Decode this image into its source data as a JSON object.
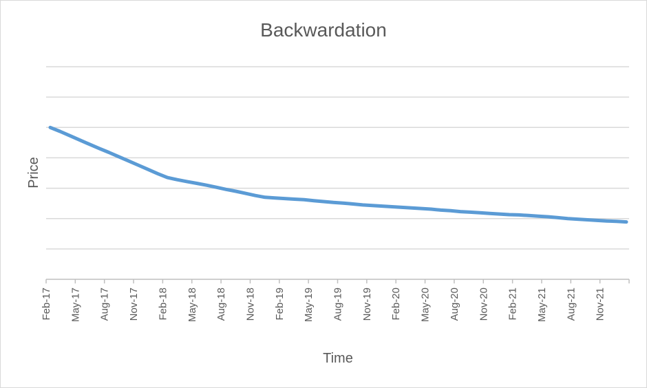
{
  "chart_data": {
    "type": "line",
    "title": "Backwardation",
    "xlabel": "Time",
    "ylabel": "Price",
    "categories": [
      "Feb-17",
      "Mar-17",
      "Apr-17",
      "May-17",
      "Jun-17",
      "Jul-17",
      "Aug-17",
      "Sep-17",
      "Oct-17",
      "Nov-17",
      "Dec-17",
      "Jan-18",
      "Feb-18",
      "Mar-18",
      "Apr-18",
      "May-18",
      "Jun-18",
      "Jul-18",
      "Aug-18",
      "Sep-18",
      "Oct-18",
      "Nov-18",
      "Dec-18",
      "Jan-19",
      "Feb-19",
      "Mar-19",
      "Apr-19",
      "May-19",
      "Jun-19",
      "Jul-19",
      "Aug-19",
      "Sep-19",
      "Oct-19",
      "Nov-19",
      "Dec-19",
      "Jan-20",
      "Feb-20",
      "Mar-20",
      "Apr-20",
      "May-20",
      "Jun-20",
      "Jul-20",
      "Aug-20",
      "Sep-20",
      "Oct-20",
      "Nov-20",
      "Dec-20",
      "Jan-21",
      "Feb-21",
      "Mar-21",
      "Apr-21",
      "May-21",
      "Jun-21",
      "Jul-21",
      "Aug-21",
      "Sep-21",
      "Oct-21",
      "Nov-21",
      "Dec-21",
      "Jan-22"
    ],
    "tick_labels": [
      "Feb-17",
      "May-17",
      "Aug-17",
      "Nov-17",
      "Feb-18",
      "May-18",
      "Aug-18",
      "Nov-18",
      "Feb-19",
      "May-19",
      "Aug-19",
      "Nov-19",
      "Feb-20",
      "May-20",
      "Aug-20",
      "Nov-20",
      "Feb-21",
      "May-21",
      "Aug-21",
      "Nov-21"
    ],
    "series": [
      {
        "values": [
          6.0,
          5.87,
          5.73,
          5.59,
          5.45,
          5.31,
          5.18,
          5.04,
          4.9,
          4.76,
          4.62,
          4.48,
          4.35,
          4.28,
          4.22,
          4.16,
          4.1,
          4.03,
          3.96,
          3.9,
          3.83,
          3.76,
          3.7,
          3.68,
          3.66,
          3.64,
          3.62,
          3.59,
          3.56,
          3.53,
          3.51,
          3.48,
          3.45,
          3.43,
          3.41,
          3.39,
          3.37,
          3.35,
          3.33,
          3.31,
          3.28,
          3.26,
          3.23,
          3.21,
          3.19,
          3.17,
          3.15,
          3.13,
          3.12,
          3.1,
          3.08,
          3.06,
          3.03,
          3.0,
          2.98,
          2.96,
          2.94,
          2.92,
          2.91,
          2.89
        ]
      }
    ],
    "ylim": [
      1.0,
      8.0
    ],
    "y_gridlines": [
      1.0,
      2.0,
      3.0,
      4.0,
      5.0,
      6.0,
      7.0
    ],
    "y_tick_labels_shown": false,
    "grid": true,
    "legend": "none",
    "colors": {
      "series": "#5b9bd5",
      "grid": "#d9d9d9",
      "axis": "#bfbfbf",
      "text": "#595959"
    }
  }
}
